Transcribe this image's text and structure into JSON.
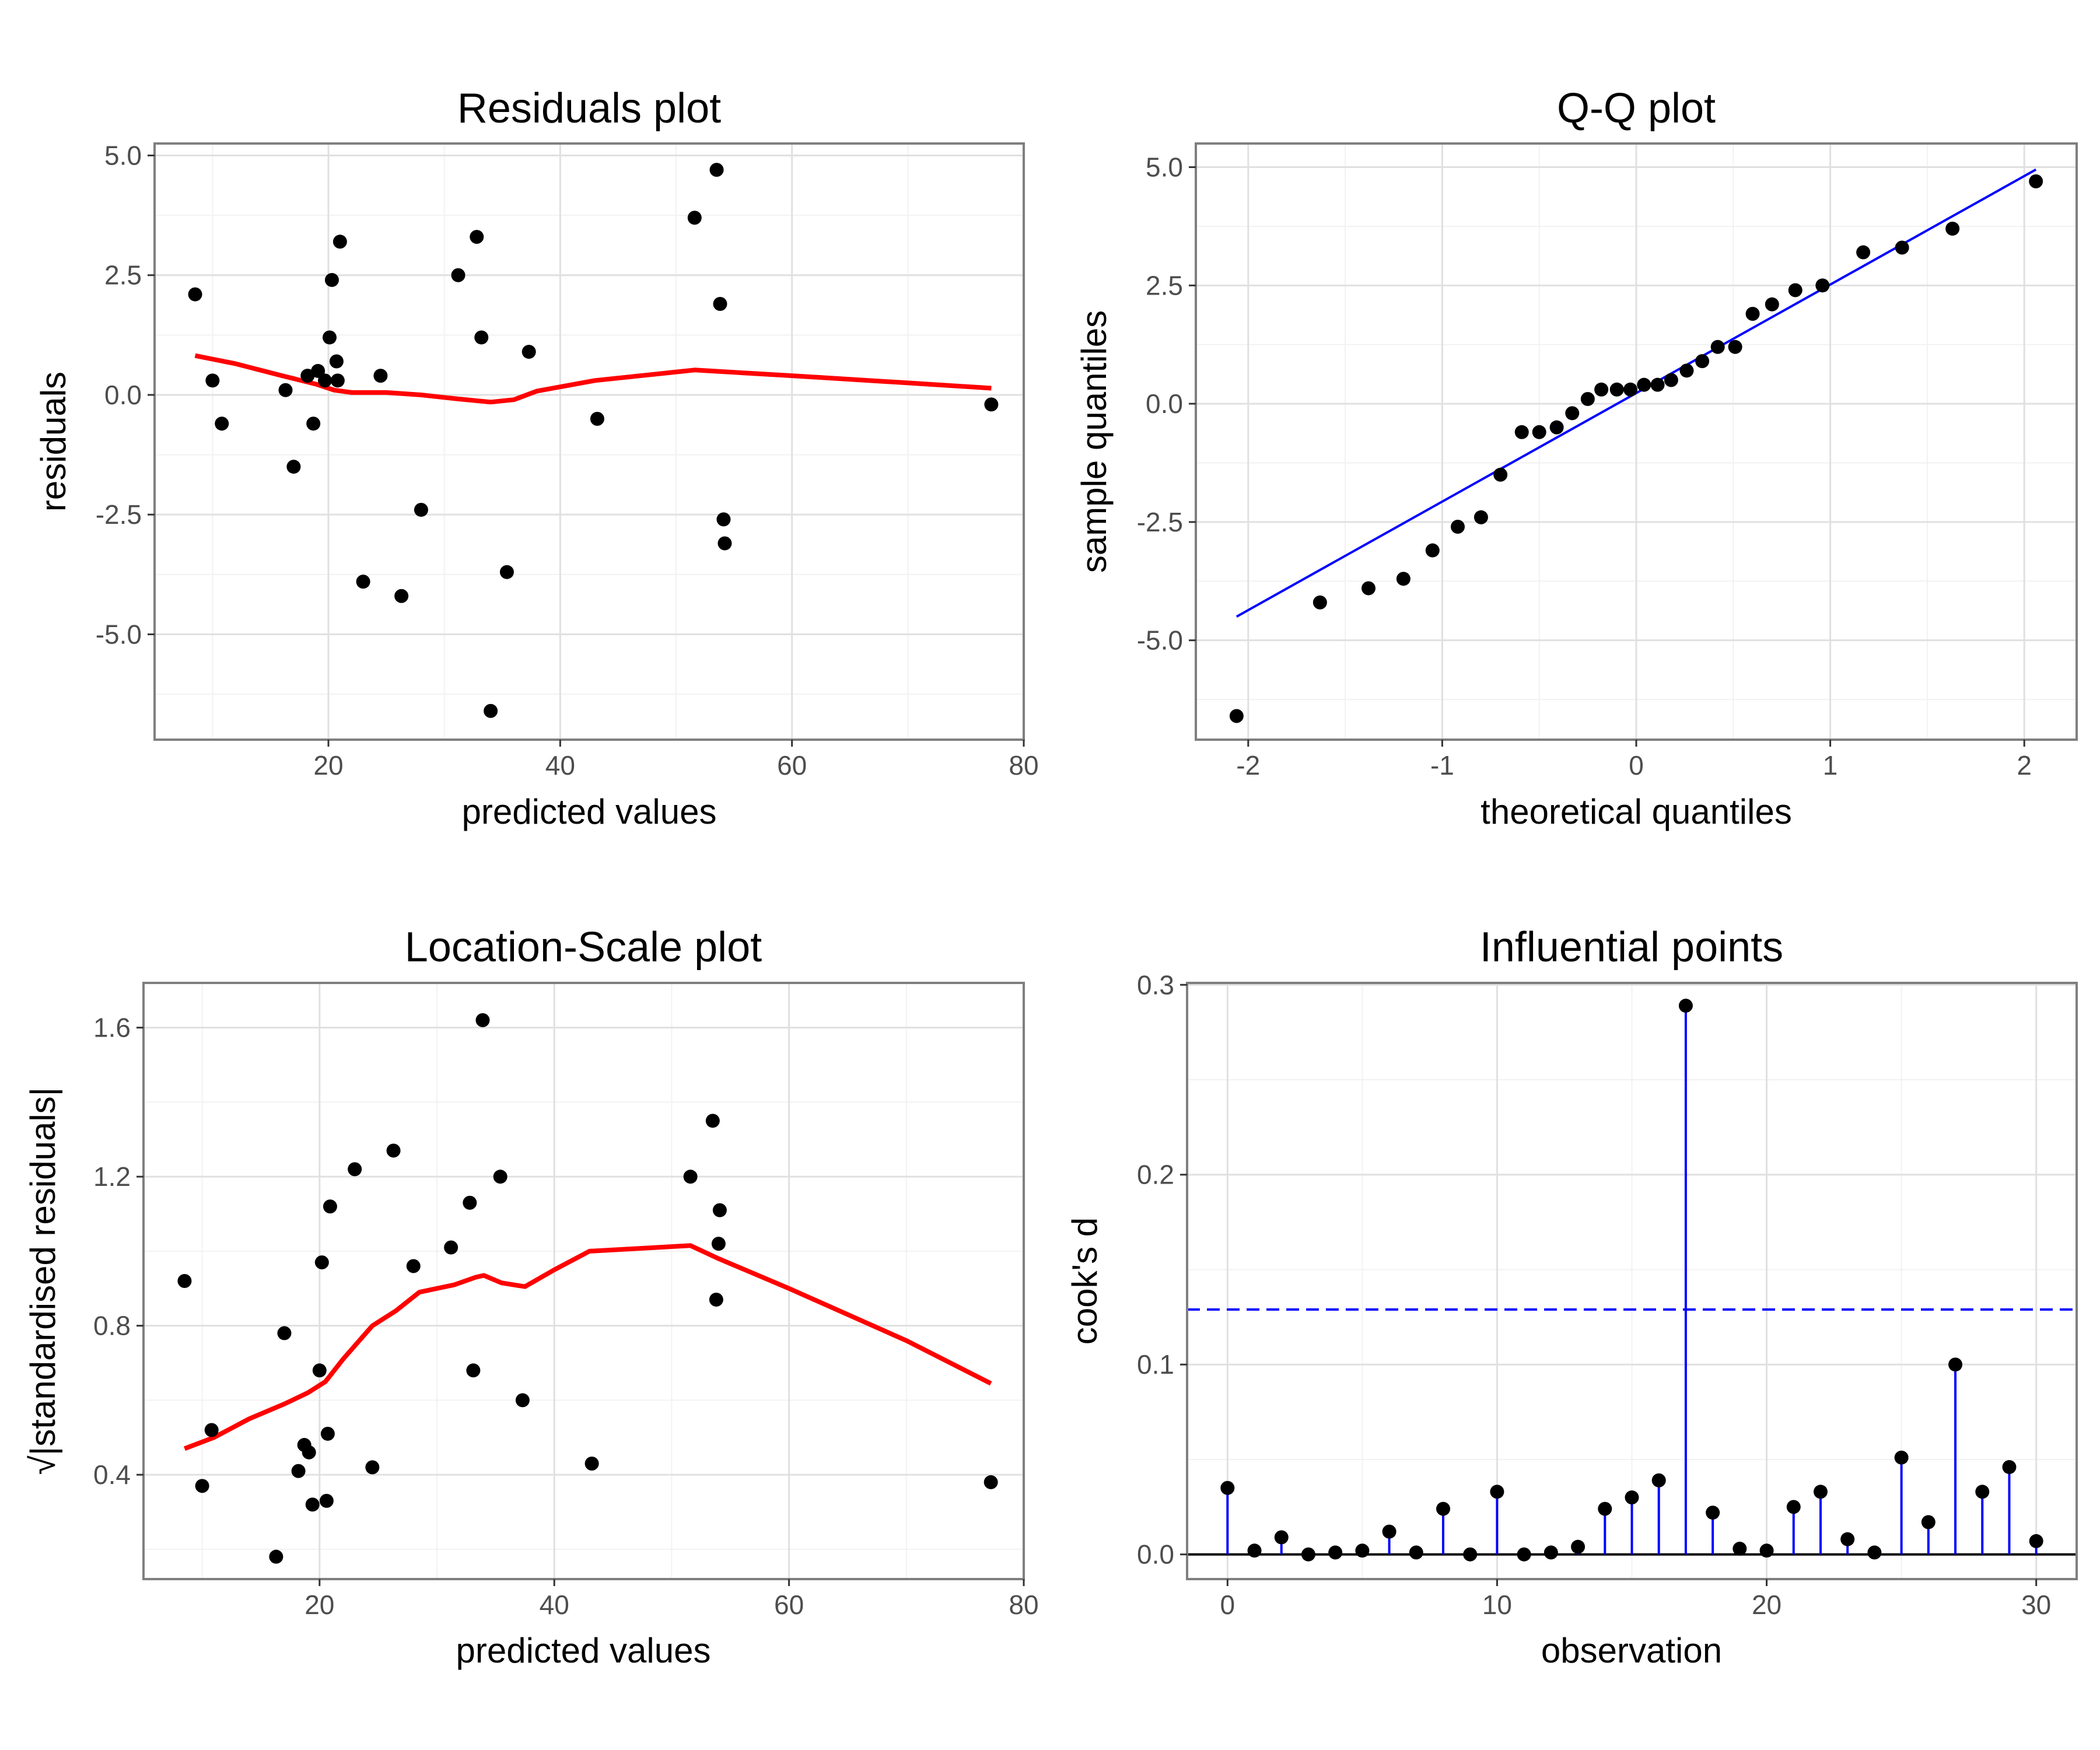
{
  "chart_data": [
    {
      "type": "scatter",
      "title": "Residuals plot",
      "xlabel": "predicted values",
      "ylabel": "residuals",
      "xlim": [
        5,
        80
      ],
      "ylim": [
        -7.2,
        5.25
      ],
      "xticks": [
        20,
        40,
        60,
        80
      ],
      "yticks": [
        -5.0,
        -2.5,
        0.0,
        2.5,
        5.0
      ],
      "xticklabels": [
        "20",
        "40",
        "60",
        "80"
      ],
      "yticklabels": [
        "-5.0",
        "-2.5",
        "0.0",
        "2.5",
        "5.0"
      ],
      "grid": true,
      "point_color": "#000000",
      "line_color": "#ff0000",
      "points": [
        [
          8.5,
          2.1
        ],
        [
          10,
          0.3
        ],
        [
          10.8,
          -0.6
        ],
        [
          16.3,
          0.1
        ],
        [
          17,
          -1.5
        ],
        [
          18.2,
          0.4
        ],
        [
          18.7,
          -0.6
        ],
        [
          19.1,
          0.5
        ],
        [
          19.7,
          0.3
        ],
        [
          20.1,
          1.2
        ],
        [
          20.3,
          2.4
        ],
        [
          20.7,
          0.7
        ],
        [
          20.8,
          0.3
        ],
        [
          21,
          3.2
        ],
        [
          23,
          -3.9
        ],
        [
          24.5,
          0.4
        ],
        [
          26.3,
          -4.2
        ],
        [
          28,
          -2.4
        ],
        [
          31.2,
          2.5
        ],
        [
          32.8,
          3.3
        ],
        [
          33.2,
          1.2
        ],
        [
          34,
          -6.6
        ],
        [
          35.4,
          -3.7
        ],
        [
          37.3,
          0.9
        ],
        [
          43.2,
          -0.5
        ],
        [
          51.6,
          3.7
        ],
        [
          53.5,
          4.7
        ],
        [
          53.8,
          1.9
        ],
        [
          54.1,
          -2.6
        ],
        [
          54.2,
          -3.1
        ],
        [
          77.2,
          -0.2
        ]
      ],
      "smooth_line": [
        [
          8.5,
          0.82
        ],
        [
          12,
          0.65
        ],
        [
          16,
          0.4
        ],
        [
          19,
          0.22
        ],
        [
          20.5,
          0.1
        ],
        [
          22,
          0.05
        ],
        [
          25,
          0.05
        ],
        [
          28,
          0.0
        ],
        [
          31,
          -0.08
        ],
        [
          34,
          -0.15
        ],
        [
          36,
          -0.1
        ],
        [
          38,
          0.08
        ],
        [
          43,
          0.3
        ],
        [
          51.6,
          0.52
        ],
        [
          60,
          0.4
        ],
        [
          70,
          0.25
        ],
        [
          77.2,
          0.14
        ]
      ]
    },
    {
      "type": "scatter",
      "title": "Q-Q plot",
      "xlabel": "theoretical quantiles",
      "ylabel": "sample quantiles",
      "xlim": [
        -2.27,
        2.27
      ],
      "ylim": [
        -7.1,
        5.5
      ],
      "xticks": [
        -2,
        -1,
        0,
        1,
        2
      ],
      "yticks": [
        -5.0,
        -2.5,
        0.0,
        2.5,
        5.0
      ],
      "xticklabels": [
        "-2",
        "-1",
        "0",
        "1",
        "2"
      ],
      "yticklabels": [
        "-5.0",
        "-2.5",
        "0.0",
        "2.5",
        "5.0"
      ],
      "grid": true,
      "point_color": "#000000",
      "line_color": "#0000ff",
      "points": [
        [
          -2.06,
          -6.6
        ],
        [
          -1.63,
          -4.2
        ],
        [
          -1.38,
          -3.9
        ],
        [
          -1.2,
          -3.7
        ],
        [
          -1.05,
          -3.1
        ],
        [
          -0.92,
          -2.6
        ],
        [
          -0.8,
          -2.4
        ],
        [
          -0.7,
          -1.5
        ],
        [
          -0.59,
          -0.6
        ],
        [
          -0.5,
          -0.6
        ],
        [
          -0.41,
          -0.5
        ],
        [
          -0.33,
          -0.2
        ],
        [
          -0.25,
          0.1
        ],
        [
          -0.18,
          0.3
        ],
        [
          -0.1,
          0.3
        ],
        [
          -0.03,
          0.3
        ],
        [
          0.04,
          0.4
        ],
        [
          0.11,
          0.4
        ],
        [
          0.18,
          0.5
        ],
        [
          0.26,
          0.7
        ],
        [
          0.34,
          0.9
        ],
        [
          0.42,
          1.2
        ],
        [
          0.51,
          1.2
        ],
        [
          0.6,
          1.9
        ],
        [
          0.7,
          2.1
        ],
        [
          0.82,
          2.4
        ],
        [
          0.96,
          2.5
        ],
        [
          1.17,
          3.2
        ],
        [
          1.37,
          3.3
        ],
        [
          1.63,
          3.7
        ],
        [
          2.06,
          4.7
        ]
      ],
      "reference_line": [
        [
          -2.06,
          -4.5
        ],
        [
          2.06,
          4.95
        ]
      ]
    },
    {
      "type": "scatter",
      "title": "Location-Scale plot",
      "xlabel": "predicted values",
      "ylabel": "√|standardised residuals|",
      "xlim": [
        5,
        80
      ],
      "ylim": [
        0.12,
        1.72
      ],
      "xticks": [
        20,
        40,
        60,
        80
      ],
      "yticks": [
        0.4,
        0.8,
        1.2,
        1.6
      ],
      "xticklabels": [
        "20",
        "40",
        "60",
        "80"
      ],
      "yticklabels": [
        "0.4",
        "0.8",
        "1.2",
        "1.6"
      ],
      "grid": true,
      "point_color": "#000000",
      "line_color": "#ff0000",
      "points": [
        [
          8.5,
          0.92
        ],
        [
          10,
          0.37
        ],
        [
          10.8,
          0.52
        ],
        [
          16.3,
          0.18
        ],
        [
          17,
          0.78
        ],
        [
          18.2,
          0.41
        ],
        [
          18.7,
          0.48
        ],
        [
          19.1,
          0.46
        ],
        [
          19.4,
          0.32
        ],
        [
          20,
          0.68
        ],
        [
          20.2,
          0.97
        ],
        [
          20.6,
          0.33
        ],
        [
          20.7,
          0.51
        ],
        [
          20.9,
          1.12
        ],
        [
          23,
          1.22
        ],
        [
          24.5,
          0.42
        ],
        [
          26.3,
          1.27
        ],
        [
          28,
          0.96
        ],
        [
          31.2,
          1.01
        ],
        [
          32.8,
          1.13
        ],
        [
          33.1,
          0.68
        ],
        [
          33.9,
          1.62
        ],
        [
          35.4,
          1.2
        ],
        [
          37.3,
          0.6
        ],
        [
          43.2,
          0.43
        ],
        [
          51.6,
          1.2
        ],
        [
          53.5,
          1.35
        ],
        [
          53.8,
          0.87
        ],
        [
          54,
          1.02
        ],
        [
          54.1,
          1.11
        ],
        [
          77.2,
          0.38
        ]
      ],
      "smooth_line": [
        [
          8.5,
          0.47
        ],
        [
          11,
          0.5
        ],
        [
          14,
          0.55
        ],
        [
          17,
          0.59
        ],
        [
          19,
          0.62
        ],
        [
          20.5,
          0.65
        ],
        [
          22,
          0.71
        ],
        [
          24.5,
          0.8
        ],
        [
          26.5,
          0.84
        ],
        [
          28.5,
          0.89
        ],
        [
          31.5,
          0.91
        ],
        [
          33.3,
          0.93
        ],
        [
          34,
          0.935
        ],
        [
          35.5,
          0.915
        ],
        [
          37.5,
          0.905
        ],
        [
          40,
          0.95
        ],
        [
          43,
          1.0
        ],
        [
          51.6,
          1.015
        ],
        [
          54,
          0.98
        ],
        [
          60,
          0.9
        ],
        [
          70,
          0.76
        ],
        [
          77.2,
          0.645
        ]
      ]
    },
    {
      "type": "bar",
      "title": "Influential points",
      "xlabel": "observation",
      "ylabel": "cook's d",
      "xlim": [
        -1.5,
        31.5
      ],
      "ylim": [
        -0.013,
        0.301
      ],
      "xticks": [
        0,
        10,
        20,
        30
      ],
      "yticks": [
        0.0,
        0.1,
        0.2,
        0.3
      ],
      "xticklabels": [
        "0",
        "10",
        "20",
        "30"
      ],
      "yticklabels": [
        "0.0",
        "0.1",
        "0.2",
        "0.3"
      ],
      "grid": true,
      "stem_color": "#0000ff",
      "point_color": "#000000",
      "threshold": 0.129,
      "x": [
        0,
        1,
        2,
        3,
        4,
        5,
        6,
        7,
        8,
        9,
        10,
        11,
        12,
        13,
        14,
        15,
        16,
        17,
        18,
        19,
        20,
        21,
        22,
        23,
        24,
        25,
        26,
        27,
        28,
        29,
        30
      ],
      "values": [
        0.035,
        0.002,
        0.009,
        0.0,
        0.001,
        0.002,
        0.012,
        0.001,
        0.024,
        0.0,
        0.033,
        0.0,
        0.001,
        0.004,
        0.024,
        0.03,
        0.039,
        0.289,
        0.022,
        0.003,
        0.002,
        0.025,
        0.033,
        0.008,
        0.001,
        0.051,
        0.017,
        0.1,
        0.033,
        0.046,
        0.007
      ]
    }
  ]
}
